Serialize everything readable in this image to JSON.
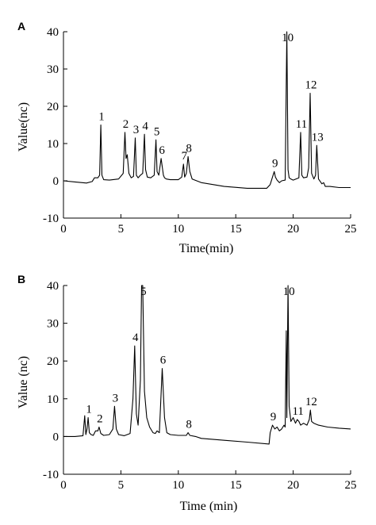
{
  "chart_data": [
    {
      "type": "line",
      "panel_label": "A",
      "xlabel": "Time(min)",
      "ylabel": "Value(nc)",
      "xlim": [
        0,
        25
      ],
      "ylim": [
        -10,
        40
      ],
      "xticks": [
        0,
        5,
        10,
        15,
        20,
        25
      ],
      "yticks": [
        -10,
        0,
        10,
        20,
        30,
        40
      ],
      "grid": false,
      "series": [
        {
          "x": [
            0,
            1,
            2,
            2.5,
            2.7,
            3.0,
            3.15,
            3.25,
            3.35,
            3.5,
            4.0,
            4.8,
            5.2,
            5.35,
            5.45,
            5.55,
            5.7,
            5.9,
            6.1,
            6.25,
            6.35,
            6.5,
            6.7,
            6.9,
            7.05,
            7.15,
            7.3,
            7.6,
            7.9,
            8.05,
            8.15,
            8.3,
            8.5,
            8.7,
            8.8,
            8.95,
            9.3,
            10.0,
            10.3,
            10.45,
            10.55,
            10.7,
            10.85,
            11.0,
            11.2,
            12.0,
            14.0,
            16.0,
            17.7,
            18.0,
            18.2,
            18.35,
            18.45,
            18.6,
            18.8,
            19.0,
            19.3,
            19.45,
            19.55,
            19.65,
            19.8,
            20.0,
            20.5,
            20.65,
            20.75,
            20.9,
            21.2,
            21.35,
            21.48,
            21.6,
            21.8,
            21.95,
            22.05,
            22.2,
            22.5,
            22.65,
            22.8,
            23.2,
            24.0,
            25.0
          ],
          "y": [
            0.0,
            -0.3,
            -0.6,
            -0.2,
            0.8,
            0.8,
            1.5,
            15.0,
            1.5,
            0.3,
            0.2,
            0.5,
            2.0,
            13.0,
            6.0,
            7.0,
            2.0,
            0.8,
            1.2,
            11.5,
            1.5,
            0.8,
            1.5,
            2.0,
            12.5,
            3.0,
            1.0,
            0.8,
            1.5,
            11.0,
            2.5,
            1.5,
            6.0,
            1.5,
            0.8,
            0.5,
            0.3,
            0.3,
            1.0,
            4.5,
            1.0,
            2.0,
            6.5,
            2.5,
            0.5,
            -0.5,
            -1.5,
            -2.0,
            -2.0,
            -1.0,
            1.0,
            2.5,
            1.0,
            0.2,
            -0.5,
            0.0,
            0.2,
            40.0,
            3.0,
            0.8,
            0.5,
            0.2,
            0.8,
            13.0,
            1.5,
            0.8,
            1.0,
            3.5,
            23.5,
            2.0,
            0.5,
            1.5,
            9.5,
            0.5,
            -0.8,
            -0.5,
            -1.5,
            -1.5,
            -1.8,
            -1.8
          ]
        }
      ],
      "annotations": [
        {
          "text": "1",
          "x": 3.25,
          "y": 15.0
        },
        {
          "text": "2",
          "x": 5.35,
          "y": 13.0
        },
        {
          "text": "3",
          "x": 6.25,
          "y": 11.5
        },
        {
          "text": "4",
          "x": 7.05,
          "y": 12.5
        },
        {
          "text": "5",
          "x": 8.05,
          "y": 11.0
        },
        {
          "text": "6",
          "x": 8.5,
          "y": 6.0
        },
        {
          "text": "7",
          "x": 10.45,
          "y": 4.5
        },
        {
          "text": "8",
          "x": 10.85,
          "y": 6.5
        },
        {
          "text": "9",
          "x": 18.35,
          "y": 2.5
        },
        {
          "text": "10",
          "x": 19.45,
          "y": 40.0
        },
        {
          "text": "11",
          "x": 20.65,
          "y": 13.0
        },
        {
          "text": "12",
          "x": 21.48,
          "y": 23.5
        },
        {
          "text": "13",
          "x": 22.05,
          "y": 9.5
        }
      ]
    },
    {
      "type": "line",
      "panel_label": "B",
      "xlabel": "Time (min)",
      "ylabel": "Value (nc)",
      "xlim": [
        0,
        25
      ],
      "ylim": [
        -10,
        40
      ],
      "xticks": [
        0,
        5,
        10,
        15,
        20,
        25
      ],
      "yticks": [
        -10,
        0,
        10,
        20,
        30,
        40
      ],
      "grid": false,
      "series": [
        {
          "x": [
            0,
            1,
            1.7,
            1.85,
            1.95,
            2.05,
            2.15,
            2.25,
            2.4,
            2.6,
            2.8,
            3.0,
            3.1,
            3.25,
            3.5,
            4.0,
            4.3,
            4.45,
            4.6,
            4.8,
            5.3,
            5.8,
            6.05,
            6.2,
            6.35,
            6.5,
            6.7,
            6.8,
            6.9,
            7.05,
            7.25,
            7.5,
            7.8,
            8.0,
            8.15,
            8.35,
            8.6,
            8.8,
            9.0,
            9.3,
            10.0,
            10.7,
            10.85,
            11.0,
            11.5,
            12.0,
            14.0,
            16.0,
            17.9,
            18.0,
            18.2,
            18.4,
            18.6,
            18.8,
            19.0,
            19.2,
            19.3,
            19.4,
            19.45,
            19.55,
            19.65,
            19.8,
            20.0,
            20.2,
            20.35,
            20.5,
            20.65,
            20.9,
            21.2,
            21.4,
            21.5,
            21.6,
            21.8,
            22.2,
            23.0,
            24.0,
            25.0
          ],
          "y": [
            0.0,
            0.0,
            0.2,
            5.5,
            0.5,
            2.0,
            5.0,
            1.0,
            0.5,
            0.3,
            1.5,
            1.5,
            2.5,
            0.8,
            0.3,
            0.5,
            2.0,
            8.0,
            2.0,
            0.5,
            0.2,
            0.8,
            10.0,
            24.0,
            6.0,
            3.0,
            15.0,
            40.0,
            40.0,
            12.0,
            5.0,
            2.5,
            1.0,
            0.8,
            1.5,
            1.0,
            18.0,
            5.0,
            1.0,
            0.5,
            0.3,
            0.3,
            1.0,
            0.3,
            0.0,
            -0.5,
            -1.0,
            -1.5,
            -2.0,
            1.0,
            3.0,
            2.0,
            2.5,
            1.5,
            2.0,
            3.0,
            2.5,
            28.0,
            5.0,
            40.0,
            8.0,
            4.0,
            5.0,
            3.5,
            4.5,
            4.0,
            3.0,
            3.5,
            3.0,
            4.5,
            7.0,
            4.0,
            3.5,
            3.0,
            2.5,
            2.2,
            2.0
          ]
        }
      ],
      "annotations": [
        {
          "text": "1",
          "x": 2.15,
          "y": 5.0
        },
        {
          "text": "2",
          "x": 3.1,
          "y": 2.5
        },
        {
          "text": "3",
          "x": 4.45,
          "y": 8.0
        },
        {
          "text": "4",
          "x": 6.2,
          "y": 24.0
        },
        {
          "text": "5",
          "x": 6.9,
          "y": 40.0
        },
        {
          "text": "6",
          "x": 8.6,
          "y": 18.0
        },
        {
          "text": "8",
          "x": 10.85,
          "y": 1.0
        },
        {
          "text": "9",
          "x": 18.2,
          "y": 3.0
        },
        {
          "text": "10",
          "x": 19.55,
          "y": 40.0
        },
        {
          "text": "11",
          "x": 20.35,
          "y": 4.5
        },
        {
          "text": "12",
          "x": 21.5,
          "y": 7.0
        }
      ]
    }
  ],
  "colors": {
    "line": "#000000",
    "axis": "#000000",
    "background": "#ffffff"
  }
}
